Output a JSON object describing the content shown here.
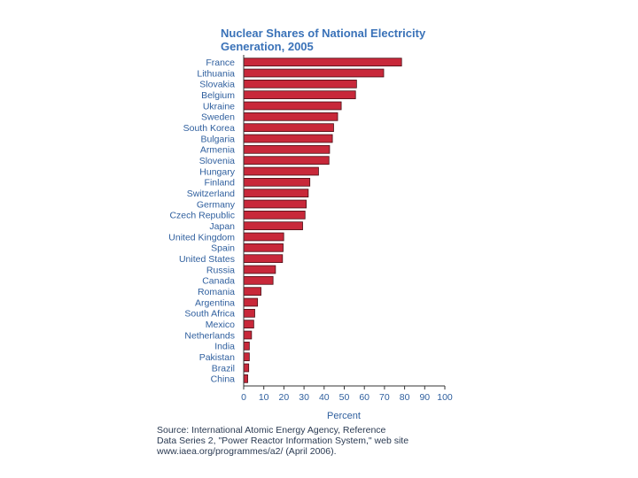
{
  "chart_data": {
    "type": "bar",
    "orientation": "horizontal",
    "title": "Nuclear Shares of National Electricity Generation, 2005",
    "title_lines": [
      "Nuclear Shares of National Electricity",
      "Generation, 2005"
    ],
    "xlabel": "Percent",
    "ylabel": "",
    "xlim": [
      0,
      100
    ],
    "xticks": [
      0,
      10,
      20,
      30,
      40,
      50,
      60,
      70,
      80,
      90,
      100
    ],
    "grid": false,
    "categories": [
      "France",
      "Lithuania",
      "Slovakia",
      "Belgium",
      "Ukraine",
      "Sweden",
      "South Korea",
      "Bulgaria",
      "Armenia",
      "Slovenia",
      "Hungary",
      "Finland",
      "Switzerland",
      "Germany",
      "Czech Republic",
      "Japan",
      "United Kingdom",
      "Spain",
      "United States",
      "Russia",
      "Canada",
      "Romania",
      "Argentina",
      "South Africa",
      "Mexico",
      "Netherlands",
      "India",
      "Pakistan",
      "Brazil",
      "China"
    ],
    "values": [
      78.5,
      69.6,
      56.1,
      55.6,
      48.5,
      46.7,
      44.7,
      44.1,
      42.7,
      42.4,
      37.2,
      32.9,
      32.1,
      31.1,
      30.5,
      29.3,
      19.9,
      19.6,
      19.3,
      15.8,
      14.6,
      8.6,
      6.9,
      5.5,
      5.0,
      3.9,
      2.8,
      2.8,
      2.5,
      2.0
    ],
    "bar_color": "#c8283a",
    "source_lines": [
      "Source: International Atomic Energy Agency, Reference",
      "Data Series 2, \"Power Reactor Information System,\" web site",
      "www.iaea.org/programmes/a2/ (April 2006)."
    ]
  }
}
